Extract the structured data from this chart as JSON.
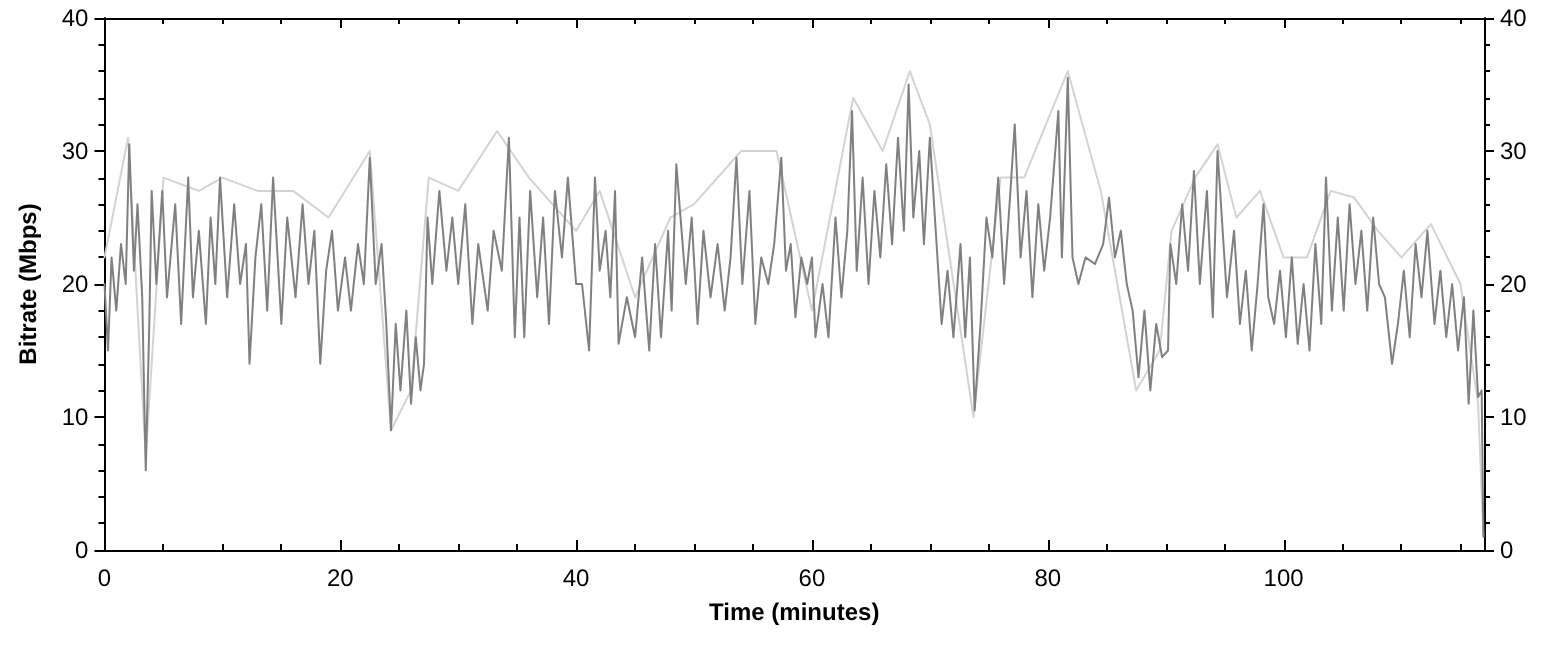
{
  "chart_data": {
    "type": "line",
    "xlabel": "Time (minutes)",
    "ylabel": "Bitrate (Mbps)",
    "xlim": [
      0,
      117
    ],
    "xticks": [
      0,
      20,
      40,
      60,
      80,
      100
    ],
    "ylim": [
      0,
      40
    ],
    "yticks": [
      0,
      10,
      20,
      30,
      40
    ],
    "y2lim": [
      0,
      40
    ],
    "y2ticks": [
      0,
      10,
      20,
      30,
      40
    ],
    "grid": false,
    "marker": "none",
    "line_style": "solid",
    "series": [
      {
        "color": "#d3d3d3",
        "x": [
          0,
          2,
          3.5,
          5,
          8,
          10,
          13,
          16,
          19,
          22.5,
          24.3,
          26,
          27.5,
          30,
          33.3,
          36,
          40,
          42,
          45,
          48,
          50,
          54,
          57,
          60,
          63.5,
          66,
          68.3,
          70,
          73.7,
          76,
          78,
          81.7,
          84.5,
          87.5,
          89.5,
          90.5,
          92.5,
          94.4,
          96,
          98,
          100,
          102,
          104,
          106,
          108,
          110,
          112.5,
          115,
          116.5,
          116.95
        ],
        "values": [
          22,
          31,
          7,
          28,
          27,
          28,
          27,
          27,
          25,
          30,
          9,
          12,
          28,
          27,
          31.5,
          28,
          24,
          27,
          19,
          25,
          26,
          30,
          30,
          18,
          34,
          30,
          36,
          32,
          10,
          28,
          28,
          36,
          27,
          12,
          15,
          24,
          28,
          30.5,
          25,
          27,
          22,
          22,
          27,
          26.5,
          24,
          22,
          24.5,
          20,
          11,
          1
        ]
      },
      {
        "color": "#808080",
        "x": [
          0,
          0.3,
          0.6,
          1,
          1.4,
          1.8,
          2.1,
          2.5,
          2.8,
          3.2,
          3.4,
          3.5,
          3.8,
          4,
          4.4,
          4.9,
          5.3,
          6,
          6.5,
          7.1,
          7.5,
          8,
          8.6,
          9,
          9.4,
          9.8,
          10.4,
          11,
          11.5,
          12,
          12.3,
          12.8,
          13.3,
          13.8,
          14.3,
          15,
          15.5,
          16.2,
          16.8,
          17.3,
          17.8,
          18.3,
          18.8,
          19.3,
          19.8,
          20.4,
          20.9,
          21.5,
          22,
          22.5,
          23,
          23.5,
          23.9,
          24.3,
          24.7,
          25.1,
          25.6,
          26,
          26.4,
          26.8,
          27.1,
          27.4,
          27.8,
          28.4,
          29,
          29.5,
          30,
          30.6,
          31.2,
          31.7,
          32.5,
          33,
          33.7,
          34.3,
          34.8,
          35.2,
          35.6,
          36.1,
          36.7,
          37.2,
          37.7,
          38.2,
          38.8,
          39.3,
          40,
          40.5,
          41.1,
          41.6,
          42,
          42.5,
          42.9,
          43.3,
          43.6,
          44.3,
          45,
          45.6,
          46.2,
          46.7,
          47.2,
          47.8,
          48.1,
          48.5,
          49.3,
          49.8,
          50.3,
          50.8,
          51.4,
          52,
          52.6,
          53.1,
          53.6,
          54.1,
          54.7,
          55.2,
          55.7,
          56.3,
          56.8,
          57.4,
          57.8,
          58.2,
          58.6,
          59.1,
          59.6,
          60,
          60.3,
          60.9,
          61.4,
          62,
          62.5,
          63,
          63.4,
          63.8,
          64.3,
          64.8,
          65.3,
          65.8,
          66.3,
          66.8,
          67.3,
          67.8,
          68.2,
          68.6,
          69.1,
          69.5,
          70,
          70.5,
          71,
          71.5,
          72,
          72.6,
          73,
          73.4,
          73.8,
          74.3,
          74.8,
          75.3,
          75.8,
          76.3,
          76.8,
          77.2,
          77.7,
          78.2,
          78.7,
          79.2,
          79.7,
          80.2,
          80.9,
          81.2,
          81.7,
          82.1,
          82.6,
          83.2,
          84,
          84.7,
          85.2,
          85.7,
          86.2,
          86.7,
          87.2,
          87.7,
          88.2,
          88.7,
          89.2,
          89.7,
          90.2,
          90.4,
          90.9,
          91.4,
          91.9,
          92.4,
          92.9,
          93.5,
          94,
          94.4,
          95.2,
          95.8,
          96.3,
          96.8,
          97.3,
          97.8,
          98.3,
          98.7,
          99.2,
          99.7,
          100.2,
          100.7,
          101.2,
          101.7,
          102.2,
          102.7,
          103.2,
          103.6,
          104.1,
          104.6,
          105.1,
          105.6,
          106.1,
          106.6,
          107.1,
          107.6,
          108.1,
          108.6,
          109.2,
          109.7,
          110.2,
          110.7,
          111.2,
          111.7,
          112.2,
          112.8,
          113.3,
          113.8,
          114.3,
          114.8,
          115.3,
          115.7,
          116.1,
          116.5,
          116.8,
          116.95
        ],
        "values": [
          20,
          15,
          22,
          18,
          23,
          20,
          30.5,
          21,
          26,
          19,
          10,
          6,
          17,
          27,
          20,
          27,
          19,
          26,
          17,
          28,
          19,
          24,
          17,
          25,
          20,
          28,
          19,
          26,
          20,
          23,
          14,
          22,
          26,
          18,
          28,
          17,
          25,
          19,
          26,
          20,
          24,
          14,
          21,
          24,
          18,
          22,
          18,
          23,
          20,
          29.5,
          20,
          23,
          17,
          9,
          17,
          12,
          18,
          11,
          16,
          12,
          14,
          25,
          20,
          27,
          21,
          25,
          20,
          26,
          17,
          23,
          18,
          24,
          21,
          31,
          16,
          25,
          16,
          27,
          19,
          25,
          17,
          27,
          22,
          28,
          20,
          20,
          15,
          28,
          21,
          24,
          19,
          27,
          15.5,
          19,
          16,
          22,
          15,
          23,
          16,
          24,
          18,
          29,
          20,
          25,
          17,
          24,
          19,
          23,
          18,
          22,
          29.5,
          20,
          27,
          17,
          22,
          20,
          23,
          29.5,
          21,
          23,
          17.5,
          22,
          20,
          22,
          16,
          20,
          16,
          25,
          19,
          24,
          33,
          21,
          28,
          20,
          27,
          22,
          29,
          23,
          31,
          24,
          35,
          25,
          30,
          23,
          31,
          24,
          17,
          21,
          16,
          23,
          16,
          22,
          10.5,
          17,
          25,
          22,
          28,
          20,
          26.5,
          32,
          22,
          27,
          19,
          26,
          21,
          25,
          33,
          22,
          35.5,
          22,
          20,
          22,
          21.5,
          23,
          26.5,
          22,
          24,
          20,
          18,
          13,
          18,
          12,
          17,
          14.5,
          15,
          23,
          20,
          26,
          21,
          28.5,
          20,
          27,
          17.5,
          30,
          19,
          24,
          17,
          21,
          15,
          20,
          26,
          19,
          17,
          21,
          16,
          22,
          15.5,
          20,
          15,
          23,
          17,
          28,
          18,
          25,
          18,
          26,
          20,
          24,
          18,
          25,
          20,
          19,
          14,
          17,
          21,
          16,
          23,
          19,
          24,
          17,
          21,
          16,
          20,
          15,
          19,
          11,
          18,
          11.5,
          12,
          1
        ]
      }
    ]
  }
}
